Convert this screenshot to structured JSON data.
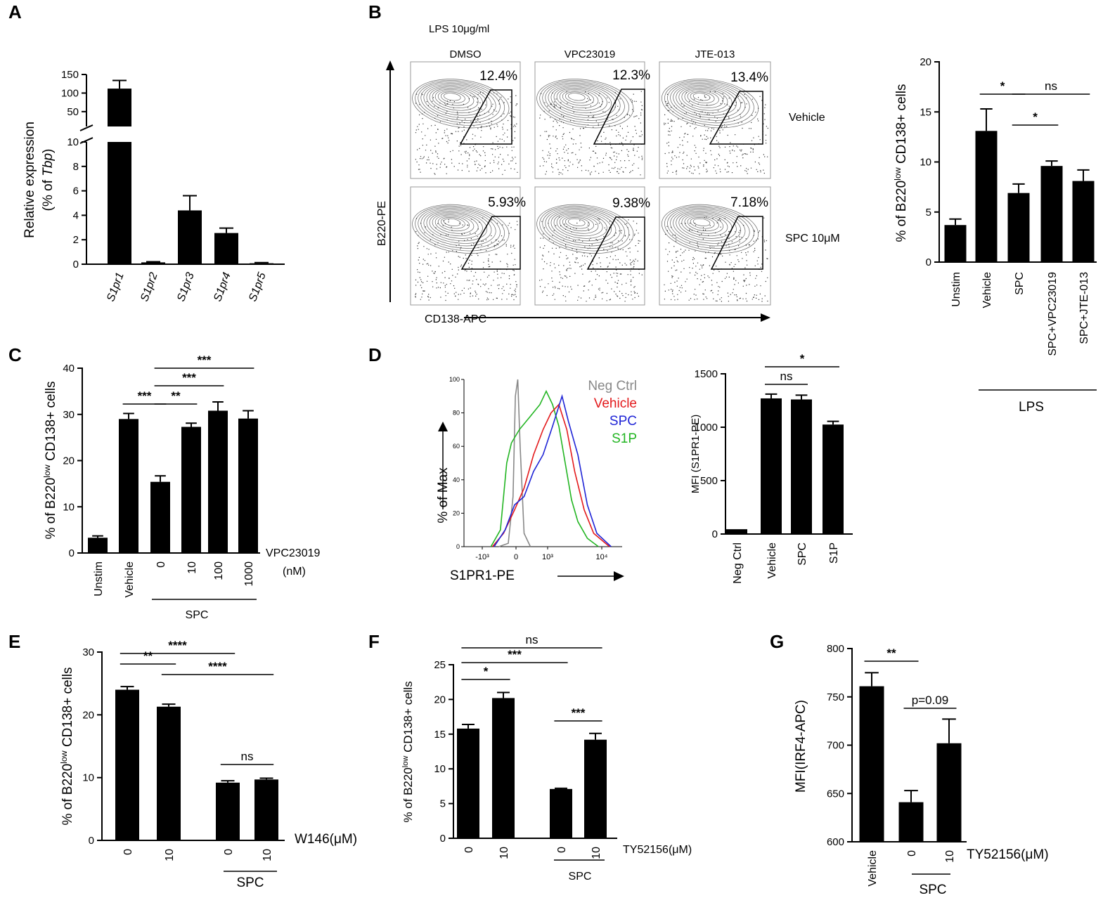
{
  "chart_data": [
    {
      "panel": "A",
      "type": "bar",
      "title": "",
      "ylabel_line1": "Relative expression",
      "ylabel_line2_prefix": "(% of ",
      "ylabel_line2_italic": "Tbp",
      "ylabel_line2_suffix": ")",
      "ylim_lower": [
        0,
        10
      ],
      "yticks_lower": [
        0,
        2,
        4,
        6,
        8,
        10
      ],
      "ylim_upper": [
        10,
        150
      ],
      "yticks_upper": [
        50,
        100,
        150
      ],
      "categories": [
        "S1pr1",
        "S1pr2",
        "S1pr3",
        "S1pr4",
        "S1pr5"
      ],
      "values": [
        112,
        0.15,
        4.4,
        2.55,
        0.08
      ],
      "errors": [
        22,
        0.05,
        1.2,
        0.4,
        0.05
      ]
    },
    {
      "panel": "B",
      "type": "bar",
      "ylabel_prefix": "% of B220",
      "ylabel_sup": "low",
      "ylabel_suffix": " CD138+ cells",
      "ylim": [
        0,
        20
      ],
      "yticks": [
        0,
        5,
        10,
        15,
        20
      ],
      "categories": [
        "Unstim",
        "Vehicle",
        "SPC",
        "SPC+VPC23019",
        "SPC+JTE-013"
      ],
      "values": [
        3.7,
        13.1,
        6.9,
        9.6,
        8.1
      ],
      "errors": [
        0.6,
        2.2,
        0.9,
        0.5,
        1.1
      ],
      "group_label": "LPS",
      "significance": [
        {
          "from": 1,
          "to": 2,
          "label": "*"
        },
        {
          "from": 2,
          "to": 4,
          "label": "ns"
        },
        {
          "from": 2,
          "to": 3,
          "label": "*"
        }
      ]
    },
    {
      "panel": "C",
      "type": "bar",
      "ylabel_prefix": "% of B220",
      "ylabel_sup": "low",
      "ylabel_suffix": " CD138+ cells",
      "ylim": [
        0,
        40
      ],
      "yticks": [
        0,
        10,
        20,
        30,
        40
      ],
      "categories": [
        "Unstim",
        "Vehicle",
        "0",
        "10",
        "100",
        "1000"
      ],
      "values": [
        3.3,
        29.0,
        15.4,
        27.3,
        30.8,
        29.1
      ],
      "errors": [
        0.4,
        1.2,
        1.3,
        0.8,
        1.9,
        1.7
      ],
      "treatment_label": "VPC23019",
      "treatment_unit": "(nM)",
      "group_label": "SPC",
      "significance": [
        {
          "from": 1,
          "to": 2,
          "label": "***"
        },
        {
          "from": 2,
          "to": 3,
          "label": "**"
        },
        {
          "from": 2,
          "to": 4,
          "label": "***"
        },
        {
          "from": 2,
          "to": 5,
          "label": "***"
        }
      ]
    },
    {
      "panel": "D",
      "type": "bar",
      "ylabel": "MFI (S1PR1-PE)",
      "ylim": [
        0,
        1500
      ],
      "yticks": [
        0,
        500,
        1000,
        1500
      ],
      "categories": [
        "Neg Ctrl",
        "Vehicle",
        "SPC",
        "S1P"
      ],
      "values": [
        45,
        1270,
        1260,
        1025
      ],
      "errors": [
        0,
        40,
        40,
        30
      ],
      "significance": [
        {
          "from": 1,
          "to": 2,
          "label": "ns"
        },
        {
          "from": 1,
          "to": 3,
          "label": "*"
        }
      ]
    },
    {
      "panel": "E",
      "type": "bar",
      "ylabel_prefix": "% of B220",
      "ylabel_sup": "low",
      "ylabel_suffix": " CD138+ cells",
      "ylim": [
        0,
        30
      ],
      "yticks": [
        0,
        10,
        20,
        30
      ],
      "categories": [
        "0",
        "10",
        "0",
        "10"
      ],
      "values": [
        24.0,
        21.3,
        9.2,
        9.7
      ],
      "errors": [
        0.5,
        0.4,
        0.3,
        0.2
      ],
      "treatment_label": "W146(μM)",
      "group_label": "SPC",
      "significance": [
        {
          "from": 0,
          "to": 1,
          "label": "**"
        },
        {
          "from": 0,
          "to": 2,
          "label": "****"
        },
        {
          "from": 1,
          "to": 3,
          "label": "****"
        },
        {
          "from": 2,
          "to": 3,
          "label": "ns"
        }
      ]
    },
    {
      "panel": "F",
      "type": "bar",
      "ylabel_prefix": "% of B220",
      "ylabel_sup": "low",
      "ylabel_suffix": " CD138+ cells",
      "ylim": [
        0,
        25
      ],
      "yticks": [
        0,
        5,
        10,
        15,
        20,
        25
      ],
      "categories": [
        "0",
        "10",
        "0",
        "10"
      ],
      "values": [
        15.8,
        20.2,
        7.1,
        14.2
      ],
      "errors": [
        0.6,
        0.8,
        0.1,
        0.9
      ],
      "treatment_label": "TY52156(μM)",
      "group_label": "SPC",
      "significance": [
        {
          "from": 0,
          "to": 1,
          "label": "*"
        },
        {
          "from": 0,
          "to": 2,
          "label": "***"
        },
        {
          "from": 0,
          "to": 3,
          "label": "ns"
        },
        {
          "from": 2,
          "to": 3,
          "label": "***"
        }
      ]
    },
    {
      "panel": "G",
      "type": "bar",
      "ylabel": "MFI(IRF4-APC)",
      "ylim": [
        600,
        800
      ],
      "yticks": [
        600,
        650,
        700,
        750,
        800
      ],
      "categories": [
        "Vehicle",
        "0",
        "10"
      ],
      "values": [
        761,
        641,
        702
      ],
      "errors": [
        14,
        12,
        25
      ],
      "treatment_label": "TY52156(μM)",
      "group_label": "SPC",
      "significance": [
        {
          "from": 0,
          "to": 1,
          "label": "**"
        },
        {
          "from": 1,
          "to": 2,
          "label": "p=0.09"
        }
      ]
    }
  ],
  "flow_panel": {
    "panel": "B",
    "stimulus": "LPS 10μg/ml",
    "columns": [
      "DMSO",
      "VPC23019",
      "JTE-013"
    ],
    "rows": [
      "Vehicle",
      "SPC 10μM"
    ],
    "percentages": [
      [
        "12.4%",
        "12.3%",
        "13.4%"
      ],
      [
        "5.93%",
        "9.38%",
        "7.18%"
      ]
    ],
    "y_axis": "B220-PE",
    "x_axis": "CD138-APC"
  },
  "histogram": {
    "panel": "D",
    "type": "line",
    "ylabel": "% of Max",
    "xlabel": "S1PR1-PE",
    "yticks": [
      0,
      20,
      40,
      60,
      80,
      100
    ],
    "xticks": [
      "-10³",
      "0",
      "10³",
      "10⁴"
    ],
    "legend": [
      {
        "label": "Neg Ctrl",
        "color": "#888888"
      },
      {
        "label": "Vehicle",
        "color": "#e31a1c"
      },
      {
        "label": "SPC",
        "color": "#1f24d6"
      },
      {
        "label": "S1P",
        "color": "#22b522"
      }
    ]
  }
}
